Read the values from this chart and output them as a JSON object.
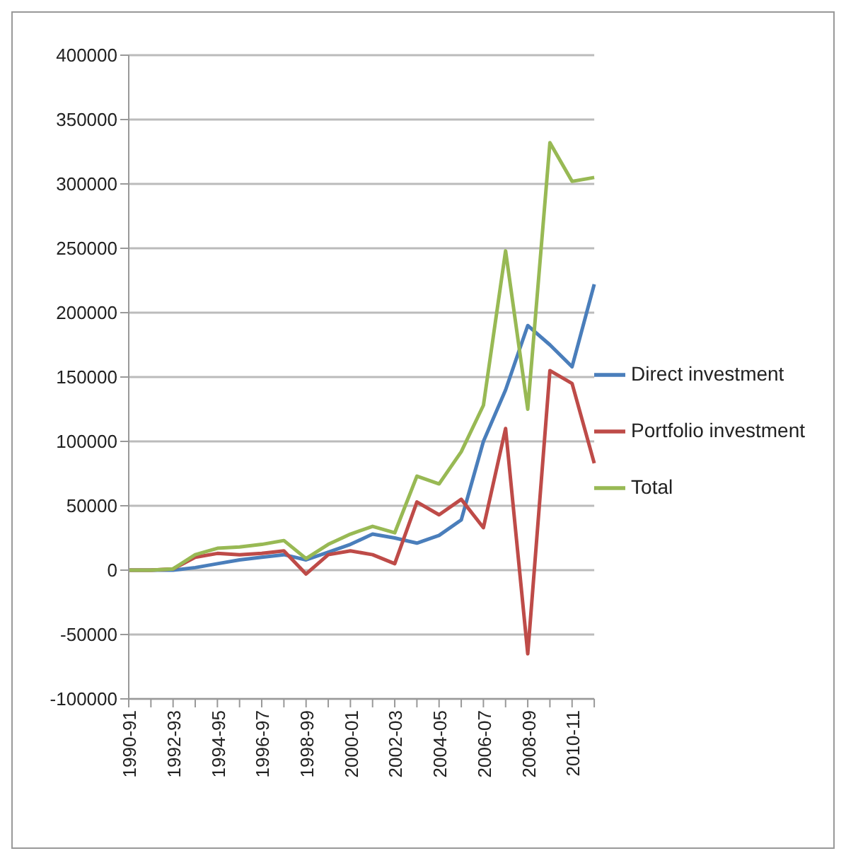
{
  "chart_data": {
    "type": "line",
    "categories": [
      "1990-91",
      null,
      "1992-93",
      null,
      "1994-95",
      null,
      "1996-97",
      null,
      "1998-99",
      null,
      "2000-01",
      null,
      "2002-03",
      null,
      "2004-05",
      null,
      "2006-07",
      null,
      "2008-09",
      null,
      "2010-11",
      null
    ],
    "series": [
      {
        "name": "Direct investment",
        "color": "#4a7ebb",
        "values": [
          0,
          0,
          0,
          2000,
          5000,
          8000,
          10000,
          12000,
          8000,
          14000,
          20000,
          28000,
          25000,
          21000,
          27000,
          39000,
          100000,
          140000,
          190000,
          175000,
          158000,
          222000
        ]
      },
      {
        "name": "Portfolio investment",
        "color": "#be4b48",
        "values": [
          0,
          0,
          1000,
          10000,
          13000,
          12000,
          13000,
          15000,
          -3000,
          12000,
          15000,
          12000,
          5000,
          53000,
          43000,
          55000,
          33000,
          110000,
          -65000,
          155000,
          145000,
          83000
        ]
      },
      {
        "name": "Total",
        "color": "#98b954",
        "values": [
          0,
          0,
          1000,
          12000,
          17000,
          18000,
          20000,
          23000,
          9000,
          20000,
          28000,
          34000,
          29000,
          73000,
          67000,
          92000,
          128000,
          248000,
          125000,
          332000,
          302000,
          305000
        ]
      }
    ],
    "ylim": [
      -100000,
      400000
    ],
    "yticks": [
      -100000,
      -50000,
      0,
      50000,
      100000,
      150000,
      200000,
      250000,
      300000,
      350000,
      400000
    ],
    "grid": "y",
    "legend": "right",
    "marker": "none",
    "line_style": "solid"
  }
}
